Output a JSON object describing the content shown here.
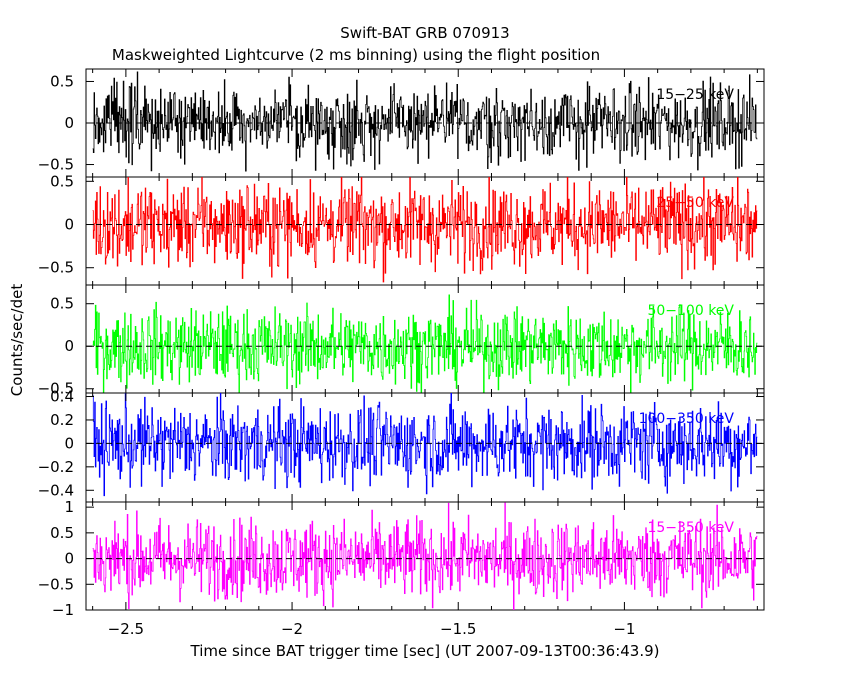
{
  "chart_data": {
    "type": "line",
    "title": "Swift-BAT GRB 070913",
    "subtitle": "Maskweighted Lightcurve (2 ms binning) using the flight position",
    "xlabel": "Time since BAT trigger time [sec] (UT 2007-09-13T00:36:43.9)",
    "ylabel": "Counts/sec/det",
    "xlim": [
      -2.62,
      -0.58
    ],
    "x_ticks": [
      -2.5,
      -2,
      -1.5,
      -1
    ],
    "x_tick_labels": [
      "−2.5",
      "−2",
      "−1.5",
      "−1"
    ],
    "x_range_data": [
      -2.6,
      -0.6
    ],
    "bin_width": 0.002,
    "panels": [
      {
        "name": "15-25 keV",
        "label": "15−25 keV",
        "color": "#000000",
        "ylim": [
          -0.65,
          0.65
        ],
        "y_ticks": [
          -0.5,
          0,
          0.5
        ],
        "y_tick_labels": [
          "−0.5",
          "0",
          "0.5"
        ],
        "noise_amplitude": 0.22
      },
      {
        "name": "25-50 keV",
        "label": "25−50 keV",
        "color": "#ff0000",
        "ylim": [
          -0.7,
          0.55
        ],
        "y_ticks": [
          -0.5,
          0,
          0.5
        ],
        "y_tick_labels": [
          "−0.5",
          "0",
          "0.5"
        ],
        "noise_amplitude": 0.24
      },
      {
        "name": "50-100 keV",
        "label": "50−100 keV",
        "color": "#00ff00",
        "ylim": [
          -0.55,
          0.72
        ],
        "y_ticks": [
          -0.5,
          0,
          0.5
        ],
        "y_tick_labels": [
          "−0.5",
          "0",
          "0.5"
        ],
        "noise_amplitude": 0.22
      },
      {
        "name": "100-350 keV",
        "label": "100−350 keV",
        "color": "#0000ff",
        "ylim": [
          -0.5,
          0.43
        ],
        "y_ticks": [
          -0.4,
          -0.2,
          0,
          0.2,
          0.4
        ],
        "y_tick_labels": [
          "−0.4",
          "−0.2",
          "0",
          "0.2",
          "0.4"
        ],
        "noise_amplitude": 0.17
      },
      {
        "name": "15-350 keV",
        "label": "15−350 keV",
        "color": "#ff00ff",
        "ylim": [
          -1.0,
          1.1
        ],
        "y_ticks": [
          -1,
          -0.5,
          0,
          0.5,
          1
        ],
        "y_tick_labels": [
          "−1",
          "−0.5",
          "0",
          "0.5",
          "1"
        ],
        "noise_amplitude": 0.38
      }
    ],
    "grid": false,
    "zero_line": true
  }
}
